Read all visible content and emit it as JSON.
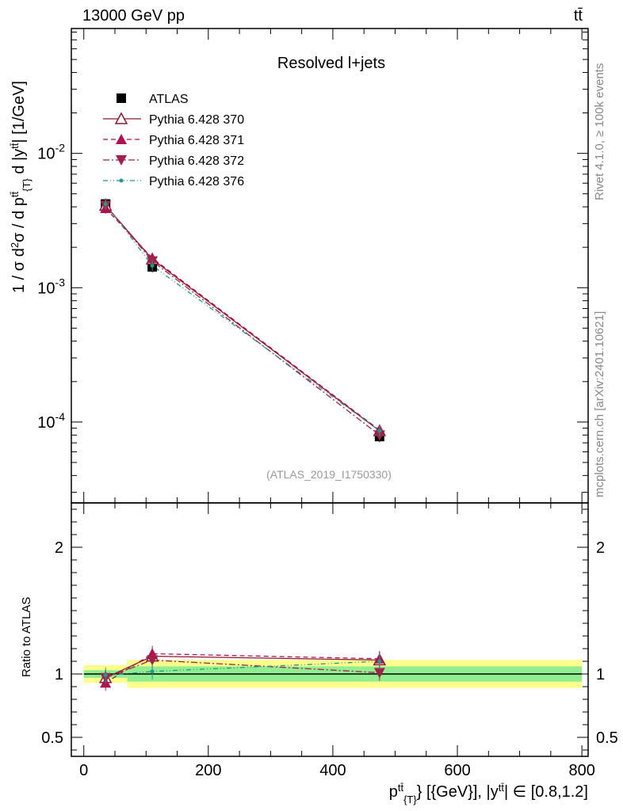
{
  "header": {
    "left": "13000 GeV pp",
    "right": "tt̄"
  },
  "side": {
    "rivet": "Rivet 4.1.0, ≥ 100k events",
    "mcplots": "mcplots.cern.ch [arXiv:2401.10621]"
  },
  "colors": {
    "atlas": "#000000",
    "p370": "#8b1a2b",
    "p371": "#b0124f",
    "p372": "#a0224a",
    "p376": "#1f9a8a",
    "band_inner": "#90ee90",
    "band_outer": "#ffff8c"
  },
  "chart_data": [
    {
      "type": "line",
      "title": "Resolved l+jets",
      "annotation": "(ATLAS_2019_I1750330)",
      "ylabel": "1 / σ d²σ / d p_{T}^{tt̄} d |y^{tt̄}| [1/GeV]",
      "yscale": "log",
      "xlim": [
        -20,
        810
      ],
      "ylim": [
        2.5e-05,
        0.085
      ],
      "yticks": [
        {
          "value": 0.01,
          "label": "10^-2"
        },
        {
          "value": 0.001,
          "label": "10^-3"
        },
        {
          "value": 0.0001,
          "label": "10^-4"
        }
      ],
      "series": [
        {
          "name": "ATLAS",
          "marker": "square",
          "style": "points",
          "x": [
            35,
            110,
            475
          ],
          "y": [
            0.0042,
            0.00143,
            7.8e-05
          ]
        },
        {
          "name": "Pythia 6.428 370",
          "marker": "triangle-up-open",
          "style": "solid",
          "x": [
            35,
            110,
            475
          ],
          "y": [
            0.0041,
            0.00163,
            8.6e-05
          ]
        },
        {
          "name": "Pythia 6.428 371",
          "marker": "triangle-up",
          "style": "dashed",
          "x": [
            35,
            110,
            475
          ],
          "y": [
            0.0039,
            0.00166,
            8.7e-05
          ]
        },
        {
          "name": "Pythia 6.428 372",
          "marker": "triangle-down",
          "style": "dashdot",
          "x": [
            35,
            110,
            475
          ],
          "y": [
            0.0041,
            0.00158,
            8e-05
          ]
        },
        {
          "name": "Pythia 6.428 376",
          "marker": "dot",
          "style": "dashdotdot",
          "x": [
            35,
            110,
            475
          ],
          "y": [
            0.0042,
            0.00146,
            8.6e-05
          ]
        }
      ]
    },
    {
      "type": "line",
      "xlabel": "p_{T}^{tt̄} [{GeV}], |y^{tt̄}| ∈ [0.8,1.2]",
      "ylabel": "Ratio to ATLAS",
      "xlim": [
        -20,
        810
      ],
      "ylim": [
        0.35,
        2.35
      ],
      "xticks": [
        0,
        200,
        400,
        600,
        800
      ],
      "yticks": [
        0.5,
        1,
        2
      ],
      "bands": [
        {
          "x0": 0,
          "x1": 70,
          "inner": 0.03,
          "outer": 0.07
        },
        {
          "x0": 70,
          "x1": 800,
          "inner": 0.06,
          "outer": 0.11
        }
      ],
      "series": [
        {
          "name": "Pythia 6.428 370",
          "x": [
            35,
            110,
            475
          ],
          "y": [
            0.97,
            1.14,
            1.11
          ]
        },
        {
          "name": "Pythia 6.428 371",
          "x": [
            35,
            110,
            475
          ],
          "y": [
            0.93,
            1.16,
            1.12
          ]
        },
        {
          "name": "Pythia 6.428 372",
          "x": [
            35,
            110,
            475
          ],
          "y": [
            0.97,
            1.11,
            1.01
          ]
        },
        {
          "name": "Pythia 6.428 376",
          "x": [
            35,
            110,
            475
          ],
          "y": [
            0.99,
            1.02,
            1.1
          ]
        }
      ]
    }
  ]
}
